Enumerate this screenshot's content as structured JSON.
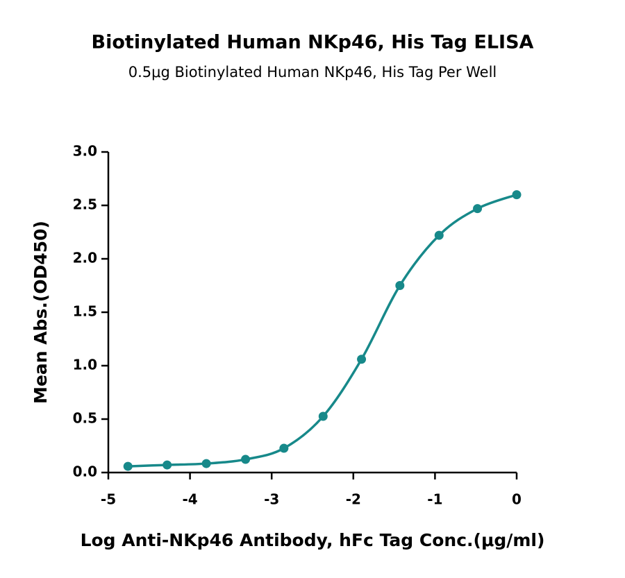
{
  "chart_data": {
    "type": "scatter",
    "title": "Biotinylated Human NKp46, His Tag ELISA",
    "subtitle": "0.5μg Biotinylated Human NKp46, His Tag Per Well",
    "x_label": "Log Anti-NKp46 Antibody, hFc Tag Conc.(μg/ml)",
    "y_label": "Mean Abs.(OD450)",
    "series": [
      {
        "color": "#17898a",
        "x": [
          -4.76,
          -4.28,
          -3.8,
          -3.32,
          -2.85,
          -2.37,
          -1.9,
          -1.43,
          -0.95,
          -0.48,
          0
        ],
        "values": [
          0.058,
          0.071,
          0.084,
          0.123,
          0.227,
          0.526,
          1.06,
          1.75,
          2.22,
          2.47,
          2.6
        ]
      }
    ],
    "fit_curve": true,
    "xlim": [
      -5,
      0
    ],
    "xticks": [
      -5,
      -4,
      -3,
      -2,
      -1,
      0
    ],
    "ylim": [
      0,
      3
    ],
    "yticks": [
      {
        "value": 0,
        "label": "0.0"
      },
      {
        "value": 0.5,
        "label": "0.5"
      },
      {
        "value": 1,
        "label": "1.0"
      },
      {
        "value": 1.5,
        "label": "1.5"
      },
      {
        "value": 2,
        "label": "2.0"
      },
      {
        "value": 2.5,
        "label": "2.5"
      },
      {
        "value": 3,
        "label": "3.0"
      }
    ],
    "grid": false
  }
}
